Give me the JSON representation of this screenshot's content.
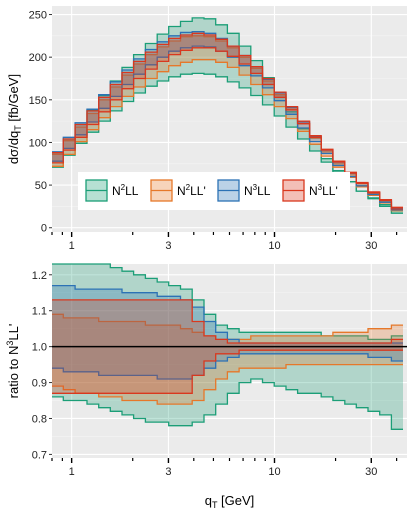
{
  "chart_data": [
    {
      "type": "step-band",
      "title": "",
      "xlabel": "",
      "ylabel_main": "dσ/dq",
      "ylabel_sub": "T",
      "ylabel_tail": " [fb/GeV]",
      "xscale": "log",
      "xlim": [
        0.8,
        45
      ],
      "ylim": [
        -5,
        260
      ],
      "xticks": [
        1,
        3,
        10,
        30
      ],
      "xtick_labels": [
        "1",
        "3",
        "10",
        "30"
      ],
      "yticks": [
        0,
        50,
        100,
        150,
        200,
        250
      ],
      "ytick_labels": [
        "0",
        "50",
        "100",
        "150",
        "200",
        "250"
      ],
      "grid": true,
      "legend": {
        "position": "inside-bottom-left",
        "entries": [
          {
            "label_main": "N",
            "label_sup": "2",
            "label_tail": "LL",
            "color": "#1b9e77"
          },
          {
            "label_main": "N",
            "label_sup": "2",
            "label_tail": "LL'",
            "color": "#e6782a"
          },
          {
            "label_main": "N",
            "label_sup": "3",
            "label_tail": "LL",
            "color": "#2c72b5"
          },
          {
            "label_main": "N",
            "label_sup": "3",
            "label_tail": "LL'",
            "color": "#d9381e"
          }
        ]
      },
      "bin_edges": [
        0.8,
        0.91,
        1.04,
        1.19,
        1.36,
        1.55,
        1.77,
        2.02,
        2.31,
        2.64,
        3.01,
        3.44,
        3.93,
        4.49,
        5.13,
        5.86,
        6.69,
        7.64,
        8.73,
        9.97,
        11.4,
        13.0,
        14.9,
        17.0,
        19.4,
        22.2,
        25.3,
        28.9,
        33.0,
        37.7,
        43.0
      ],
      "series": [
        {
          "name": "N2LL",
          "color": "#1b9e77",
          "lower": [
            71,
            85,
            99,
            112,
            125,
            137,
            148,
            158,
            166,
            172,
            177,
            180,
            181,
            180,
            177,
            171,
            164,
            155,
            144,
            131,
            118,
            104,
            90,
            77,
            65,
            54,
            43,
            34,
            25,
            17
          ],
          "upper": [
            88,
            104,
            121,
            138,
            155,
            172,
            188,
            203,
            216,
            227,
            236,
            242,
            246,
            245,
            238,
            228,
            213,
            196,
            176,
            156,
            136,
            116,
            98,
            81,
            67,
            54,
            43,
            35,
            27,
            20
          ]
        },
        {
          "name": "N2LL'",
          "color": "#e6782a",
          "lower": [
            72,
            86,
            101,
            115,
            129,
            142,
            154,
            165,
            175,
            183,
            190,
            194,
            197,
            197,
            194,
            188,
            179,
            168,
            156,
            142,
            128,
            113,
            98,
            84,
            71,
            59,
            48,
            38,
            29,
            20
          ],
          "upper": [
            86,
            102,
            118,
            134,
            150,
            165,
            179,
            192,
            203,
            212,
            219,
            224,
            225,
            224,
            219,
            211,
            200,
            187,
            172,
            156,
            139,
            122,
            105,
            89,
            75,
            62,
            50,
            40,
            31,
            22
          ]
        },
        {
          "name": "N3LL",
          "color": "#2c72b5",
          "lower": [
            78,
            93,
            109,
            124,
            140,
            154,
            168,
            180,
            191,
            200,
            207,
            211,
            213,
            212,
            207,
            200,
            190,
            178,
            164,
            149,
            133,
            117,
            101,
            87,
            73,
            60,
            49,
            39,
            30,
            21
          ],
          "upper": [
            89,
            106,
            123,
            139,
            156,
            171,
            185,
            198,
            209,
            218,
            225,
            229,
            230,
            228,
            222,
            213,
            202,
            189,
            174,
            158,
            141,
            124,
            107,
            91,
            77,
            64,
            52,
            41,
            32,
            23
          ]
        },
        {
          "name": "N3LL'",
          "color": "#d9381e",
          "lower": [
            76,
            91,
            106,
            121,
            136,
            150,
            163,
            175,
            186,
            195,
            203,
            208,
            211,
            211,
            207,
            201,
            192,
            181,
            168,
            153,
            138,
            122,
            106,
            91,
            77,
            64,
            52,
            41,
            32,
            22
          ],
          "upper": [
            88,
            104,
            121,
            137,
            153,
            168,
            182,
            195,
            206,
            215,
            222,
            226,
            228,
            226,
            221,
            213,
            202,
            189,
            175,
            159,
            142,
            125,
            108,
            92,
            78,
            65,
            53,
            42,
            33,
            24
          ]
        }
      ]
    },
    {
      "type": "step-band",
      "title": "",
      "xlabel_main": "q",
      "xlabel_sub": "T",
      "xlabel_tail": " [GeV]",
      "ylabel_main": "ratio to N",
      "ylabel_sup": "3",
      "ylabel_tail": "LL'",
      "xscale": "log",
      "xlim": [
        0.8,
        45
      ],
      "ylim": [
        0.69,
        1.23
      ],
      "xticks": [
        1,
        3,
        10,
        30
      ],
      "xtick_labels": [
        "1",
        "3",
        "10",
        "30"
      ],
      "yticks": [
        0.7,
        0.8,
        0.9,
        1.0,
        1.1,
        1.2
      ],
      "ytick_labels": [
        "0.7",
        "0.8",
        "0.9",
        "1.0",
        "1.1",
        "1.2"
      ],
      "reference_line": 1.0,
      "grid": true,
      "bin_edges": [
        0.8,
        0.91,
        1.04,
        1.19,
        1.36,
        1.55,
        1.77,
        2.02,
        2.31,
        2.64,
        3.01,
        3.44,
        3.93,
        4.49,
        5.13,
        5.86,
        6.69,
        7.64,
        8.73,
        9.97,
        11.4,
        13.0,
        14.9,
        17.0,
        19.4,
        22.2,
        25.3,
        28.9,
        33.0,
        37.7,
        43.0
      ],
      "series": [
        {
          "name": "N2LL",
          "color": "#1b9e77",
          "lower": [
            0.86,
            0.85,
            0.85,
            0.84,
            0.83,
            0.82,
            0.81,
            0.8,
            0.79,
            0.79,
            0.78,
            0.78,
            0.79,
            0.81,
            0.84,
            0.87,
            0.9,
            0.91,
            0.9,
            0.89,
            0.88,
            0.87,
            0.87,
            0.86,
            0.85,
            0.84,
            0.83,
            0.82,
            0.81,
            0.77
          ],
          "upper": [
            1.23,
            1.23,
            1.23,
            1.23,
            1.23,
            1.22,
            1.21,
            1.2,
            1.19,
            1.18,
            1.17,
            1.16,
            1.13,
            1.09,
            1.06,
            1.05,
            1.04,
            1.04,
            1.04,
            1.04,
            1.04,
            1.04,
            1.04,
            1.03,
            1.03,
            1.03,
            1.03,
            1.02,
            1.02,
            1.03
          ]
        },
        {
          "name": "N2LL'",
          "color": "#e6782a",
          "lower": [
            0.89,
            0.88,
            0.87,
            0.87,
            0.86,
            0.86,
            0.85,
            0.85,
            0.85,
            0.84,
            0.84,
            0.84,
            0.85,
            0.88,
            0.91,
            0.93,
            0.94,
            0.94,
            0.94,
            0.94,
            0.95,
            0.95,
            0.95,
            0.95,
            0.95,
            0.95,
            0.95,
            0.95,
            0.95,
            0.95
          ],
          "upper": [
            1.09,
            1.08,
            1.08,
            1.08,
            1.07,
            1.07,
            1.07,
            1.07,
            1.06,
            1.06,
            1.06,
            1.05,
            1.04,
            1.03,
            1.02,
            1.02,
            1.02,
            1.03,
            1.03,
            1.03,
            1.03,
            1.03,
            1.03,
            1.03,
            1.04,
            1.04,
            1.04,
            1.05,
            1.05,
            1.06
          ]
        },
        {
          "name": "N3LL",
          "color": "#2c72b5",
          "lower": [
            0.94,
            0.93,
            0.93,
            0.93,
            0.92,
            0.92,
            0.92,
            0.92,
            0.92,
            0.91,
            0.91,
            0.91,
            0.92,
            0.94,
            0.96,
            0.97,
            0.98,
            0.98,
            0.98,
            0.98,
            0.98,
            0.98,
            0.98,
            0.98,
            0.98,
            0.98,
            0.98,
            0.97,
            0.97,
            0.96
          ],
          "upper": [
            1.17,
            1.17,
            1.16,
            1.16,
            1.16,
            1.16,
            1.15,
            1.15,
            1.15,
            1.14,
            1.14,
            1.13,
            1.11,
            1.07,
            1.04,
            1.02,
            1.01,
            1.01,
            1.01,
            1.01,
            1.01,
            1.01,
            1.01,
            1.01,
            1.01,
            1.01,
            1.01,
            1.01,
            1.01,
            1.01
          ]
        },
        {
          "name": "N3LL'",
          "color": "#d9381e",
          "lower": [
            0.87,
            0.87,
            0.87,
            0.87,
            0.87,
            0.87,
            0.87,
            0.87,
            0.87,
            0.87,
            0.87,
            0.87,
            0.92,
            0.96,
            0.98,
            0.98,
            0.99,
            0.99,
            0.99,
            0.99,
            0.99,
            0.99,
            0.99,
            0.99,
            0.99,
            0.99,
            0.99,
            0.99,
            0.99,
            0.99
          ],
          "upper": [
            1.13,
            1.13,
            1.13,
            1.13,
            1.13,
            1.13,
            1.13,
            1.13,
            1.13,
            1.13,
            1.13,
            1.13,
            1.07,
            1.03,
            1.02,
            1.01,
            1.01,
            1.01,
            1.01,
            1.01,
            1.01,
            1.01,
            1.01,
            1.01,
            1.01,
            1.01,
            1.01,
            1.01,
            1.01,
            1.02
          ]
        }
      ]
    }
  ]
}
